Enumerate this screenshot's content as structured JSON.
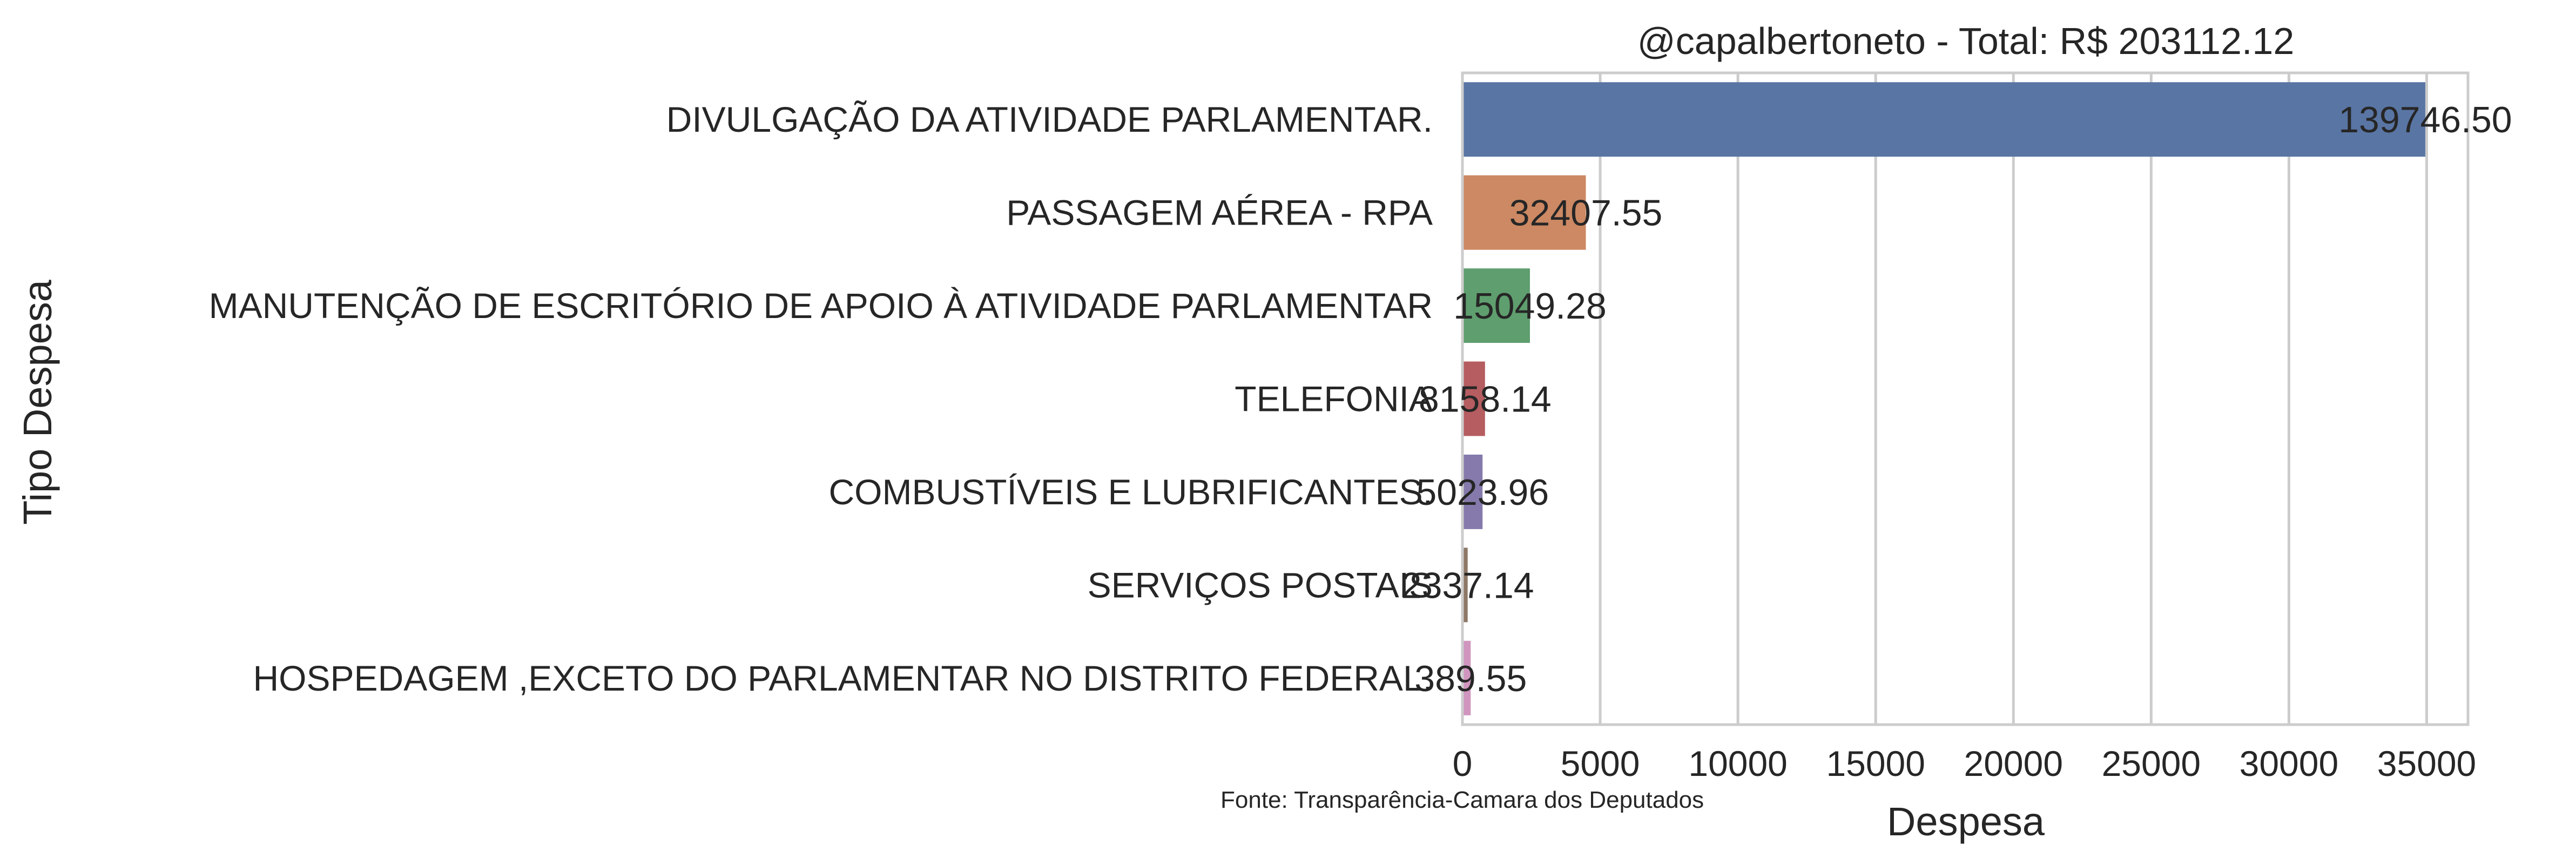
{
  "chart_data": {
    "type": "bar",
    "orientation": "horizontal",
    "title": "@capalbertoneto - Total: R$ 203112.12",
    "xlabel": "Despesa",
    "ylabel": "Tipo Despesa",
    "xlim": [
      0,
      36500
    ],
    "xticks": [
      0,
      5000,
      10000,
      15000,
      20000,
      25000,
      30000,
      35000
    ],
    "grid": "vertical",
    "categories": [
      "DIVULGAÇÃO DA ATIVIDADE PARLAMENTAR.",
      "PASSAGEM AÉREA - RPA",
      "MANUTENÇÃO DE ESCRITÓRIO DE APOIO À ATIVIDADE PARLAMENTAR",
      "TELEFONIA",
      "COMBUSTÍVEIS E LUBRIFICANTES.",
      "SERVIÇOS POSTAIS",
      "HOSPEDAGEM ,EXCETO DO PARLAMENTAR NO DISTRITO FEDERAL."
    ],
    "bar_values": [
      34950,
      4480,
      2450,
      820,
      730,
      190,
      300
    ],
    "value_labels": [
      "139746.50",
      "32407.55",
      "15049.28",
      "8158.14",
      "5023.96",
      "2337.14",
      "389.55"
    ],
    "colors": [
      "#5975a4",
      "#cc8963",
      "#5f9e6e",
      "#b55d60",
      "#857aab",
      "#8d7866",
      "#d095bf"
    ],
    "source_note": "Fonte: Transparência-Camara dos Deputados"
  }
}
